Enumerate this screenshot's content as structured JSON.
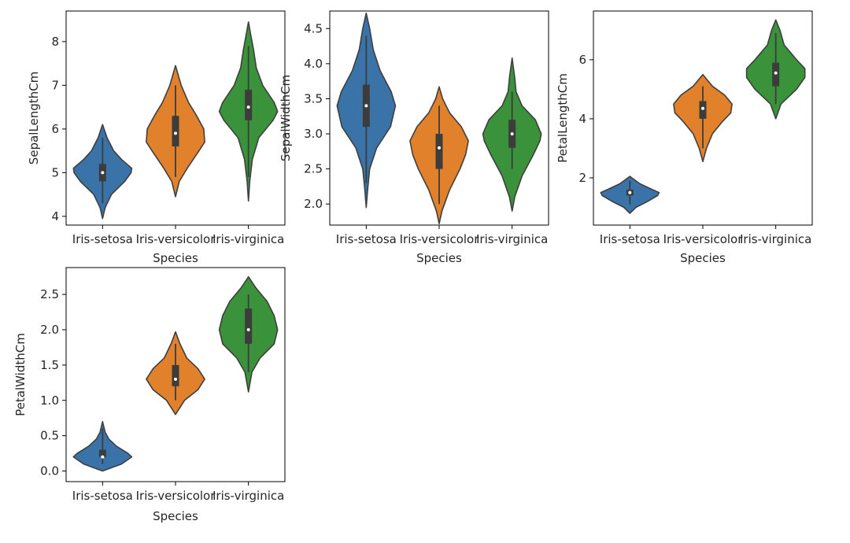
{
  "colors": {
    "series": [
      "#3a73a8",
      "#e1812c",
      "#3a923a"
    ],
    "edge": "#3f3f3f",
    "box": "#3c3c3c",
    "median": "#ffffff",
    "axes": "#000000",
    "text": "#262626"
  },
  "chart_data": [
    {
      "type": "violin",
      "xlabel": "Species",
      "ylabel": "SepalLengthCm",
      "categories": [
        "Iris-setosa",
        "Iris-versicolor",
        "Iris-virginica"
      ],
      "ylim": [
        3.8,
        8.7
      ],
      "yticks": [
        4,
        5,
        6,
        7,
        8
      ],
      "series": [
        {
          "min": 4.3,
          "q1": 4.8,
          "median": 5.0,
          "q3": 5.2,
          "max": 5.8,
          "kde_range": [
            3.95,
            6.1
          ],
          "density": [
            [
              3.95,
              0.0
            ],
            [
              4.2,
              0.08
            ],
            [
              4.5,
              0.28
            ],
            [
              4.8,
              0.7
            ],
            [
              5.0,
              0.9
            ],
            [
              5.1,
              0.92
            ],
            [
              5.3,
              0.6
            ],
            [
              5.5,
              0.35
            ],
            [
              5.8,
              0.14
            ],
            [
              6.1,
              0.0
            ]
          ]
        },
        {
          "min": 4.9,
          "q1": 5.6,
          "median": 5.9,
          "q3": 6.3,
          "max": 7.0,
          "kde_range": [
            4.45,
            7.45
          ],
          "density": [
            [
              4.45,
              0.0
            ],
            [
              4.8,
              0.08
            ],
            [
              5.1,
              0.25
            ],
            [
              5.5,
              0.5
            ],
            [
              5.7,
              0.62
            ],
            [
              6.0,
              0.6
            ],
            [
              6.3,
              0.45
            ],
            [
              6.6,
              0.28
            ],
            [
              7.0,
              0.12
            ],
            [
              7.45,
              0.0
            ]
          ]
        },
        {
          "min": 4.9,
          "q1": 6.2,
          "median": 6.5,
          "q3": 6.9,
          "max": 7.9,
          "kde_range": [
            4.35,
            8.45
          ],
          "density": [
            [
              4.35,
              0.0
            ],
            [
              4.8,
              0.02
            ],
            [
              5.3,
              0.06
            ],
            [
              5.8,
              0.16
            ],
            [
              6.2,
              0.38
            ],
            [
              6.4,
              0.45
            ],
            [
              6.6,
              0.4
            ],
            [
              7.0,
              0.22
            ],
            [
              7.4,
              0.12
            ],
            [
              7.8,
              0.08
            ],
            [
              8.2,
              0.03
            ],
            [
              8.45,
              0.0
            ]
          ]
        }
      ]
    },
    {
      "type": "violin",
      "xlabel": "Species",
      "ylabel": "SepalWidthCm",
      "categories": [
        "Iris-setosa",
        "Iris-versicolor",
        "Iris-virginica"
      ],
      "ylim": [
        1.7,
        4.75
      ],
      "yticks": [
        2.0,
        2.5,
        3.0,
        3.5,
        4.0,
        4.5
      ],
      "series": [
        {
          "min": 2.3,
          "q1": 3.1,
          "median": 3.4,
          "q3": 3.7,
          "max": 4.4,
          "kde_range": [
            1.95,
            4.72
          ],
          "density": [
            [
              1.95,
              0.0
            ],
            [
              2.2,
              0.02
            ],
            [
              2.5,
              0.05
            ],
            [
              2.8,
              0.15
            ],
            [
              3.1,
              0.35
            ],
            [
              3.4,
              0.42
            ],
            [
              3.6,
              0.36
            ],
            [
              3.9,
              0.2
            ],
            [
              4.2,
              0.1
            ],
            [
              4.5,
              0.05
            ],
            [
              4.72,
              0.0
            ]
          ]
        },
        {
          "min": 2.0,
          "q1": 2.5,
          "median": 2.8,
          "q3": 3.0,
          "max": 3.4,
          "kde_range": [
            1.72,
            3.67
          ],
          "density": [
            [
              1.72,
              0.0
            ],
            [
              1.9,
              0.04
            ],
            [
              2.2,
              0.15
            ],
            [
              2.5,
              0.3
            ],
            [
              2.7,
              0.38
            ],
            [
              2.9,
              0.42
            ],
            [
              3.1,
              0.32
            ],
            [
              3.3,
              0.15
            ],
            [
              3.5,
              0.05
            ],
            [
              3.67,
              0.0
            ]
          ]
        },
        {
          "min": 2.5,
          "q1": 2.8,
          "median": 3.0,
          "q3": 3.2,
          "max": 3.6,
          "kde_range": [
            1.9,
            4.08
          ],
          "density": [
            [
              1.9,
              0.0
            ],
            [
              2.1,
              0.04
            ],
            [
              2.4,
              0.15
            ],
            [
              2.7,
              0.32
            ],
            [
              2.9,
              0.42
            ],
            [
              3.0,
              0.44
            ],
            [
              3.2,
              0.35
            ],
            [
              3.4,
              0.15
            ],
            [
              3.6,
              0.06
            ],
            [
              3.8,
              0.04
            ],
            [
              4.08,
              0.0
            ]
          ]
        }
      ]
    },
    {
      "type": "violin",
      "xlabel": "Species",
      "ylabel": "PetalLengthCm",
      "categories": [
        "Iris-setosa",
        "Iris-versicolor",
        "Iris-virginica"
      ],
      "ylim": [
        0.4,
        7.65
      ],
      "yticks": [
        2,
        4,
        6
      ],
      "series": [
        {
          "min": 1.1,
          "q1": 1.4,
          "median": 1.5,
          "q3": 1.6,
          "max": 1.9,
          "kde_range": [
            0.8,
            2.05
          ],
          "density": [
            [
              0.8,
              0.0
            ],
            [
              1.0,
              0.12
            ],
            [
              1.2,
              0.35
            ],
            [
              1.4,
              0.55
            ],
            [
              1.5,
              0.58
            ],
            [
              1.6,
              0.45
            ],
            [
              1.8,
              0.2
            ],
            [
              2.05,
              0.0
            ]
          ]
        },
        {
          "min": 3.0,
          "q1": 4.0,
          "median": 4.35,
          "q3": 4.6,
          "max": 5.1,
          "kde_range": [
            2.55,
            5.5
          ],
          "density": [
            [
              2.55,
              0.0
            ],
            [
              3.0,
              0.03
            ],
            [
              3.5,
              0.08
            ],
            [
              3.9,
              0.16
            ],
            [
              4.2,
              0.23
            ],
            [
              4.5,
              0.24
            ],
            [
              4.8,
              0.18
            ],
            [
              5.1,
              0.08
            ],
            [
              5.5,
              0.0
            ]
          ]
        },
        {
          "min": 4.5,
          "q1": 5.1,
          "median": 5.55,
          "q3": 5.9,
          "max": 6.9,
          "kde_range": [
            4.0,
            7.35
          ],
          "density": [
            [
              4.0,
              0.0
            ],
            [
              4.5,
              0.05
            ],
            [
              5.0,
              0.2
            ],
            [
              5.4,
              0.28
            ],
            [
              5.7,
              0.28
            ],
            [
              6.0,
              0.2
            ],
            [
              6.5,
              0.08
            ],
            [
              7.0,
              0.04
            ],
            [
              7.35,
              0.0
            ]
          ]
        }
      ]
    },
    {
      "type": "violin",
      "xlabel": "Species",
      "ylabel": "PetalWidthCm",
      "categories": [
        "Iris-setosa",
        "Iris-versicolor",
        "Iris-virginica"
      ],
      "ylim": [
        -0.15,
        2.88
      ],
      "yticks": [
        0.0,
        0.5,
        1.0,
        1.5,
        2.0,
        2.5
      ],
      "series": [
        {
          "min": 0.1,
          "q1": 0.2,
          "median": 0.2,
          "q3": 0.3,
          "max": 0.6,
          "kde_range": [
            0.0,
            0.7
          ],
          "density": [
            [
              0.0,
              0.0
            ],
            [
              0.1,
              0.3
            ],
            [
              0.2,
              0.46
            ],
            [
              0.25,
              0.4
            ],
            [
              0.35,
              0.22
            ],
            [
              0.45,
              0.1
            ],
            [
              0.55,
              0.04
            ],
            [
              0.7,
              0.0
            ]
          ]
        },
        {
          "min": 1.0,
          "q1": 1.2,
          "median": 1.3,
          "q3": 1.5,
          "max": 1.8,
          "kde_range": [
            0.8,
            1.97
          ],
          "density": [
            [
              0.8,
              0.0
            ],
            [
              1.0,
              0.08
            ],
            [
              1.15,
              0.2
            ],
            [
              1.3,
              0.26
            ],
            [
              1.45,
              0.2
            ],
            [
              1.6,
              0.1
            ],
            [
              1.8,
              0.04
            ],
            [
              1.97,
              0.0
            ]
          ]
        },
        {
          "min": 1.4,
          "q1": 1.8,
          "median": 2.0,
          "q3": 2.3,
          "max": 2.5,
          "kde_range": [
            1.12,
            2.75
          ],
          "density": [
            [
              1.12,
              0.0
            ],
            [
              1.4,
              0.03
            ],
            [
              1.6,
              0.1
            ],
            [
              1.8,
              0.22
            ],
            [
              2.0,
              0.25
            ],
            [
              2.2,
              0.22
            ],
            [
              2.4,
              0.16
            ],
            [
              2.6,
              0.06
            ],
            [
              2.75,
              0.0
            ]
          ]
        }
      ]
    }
  ]
}
